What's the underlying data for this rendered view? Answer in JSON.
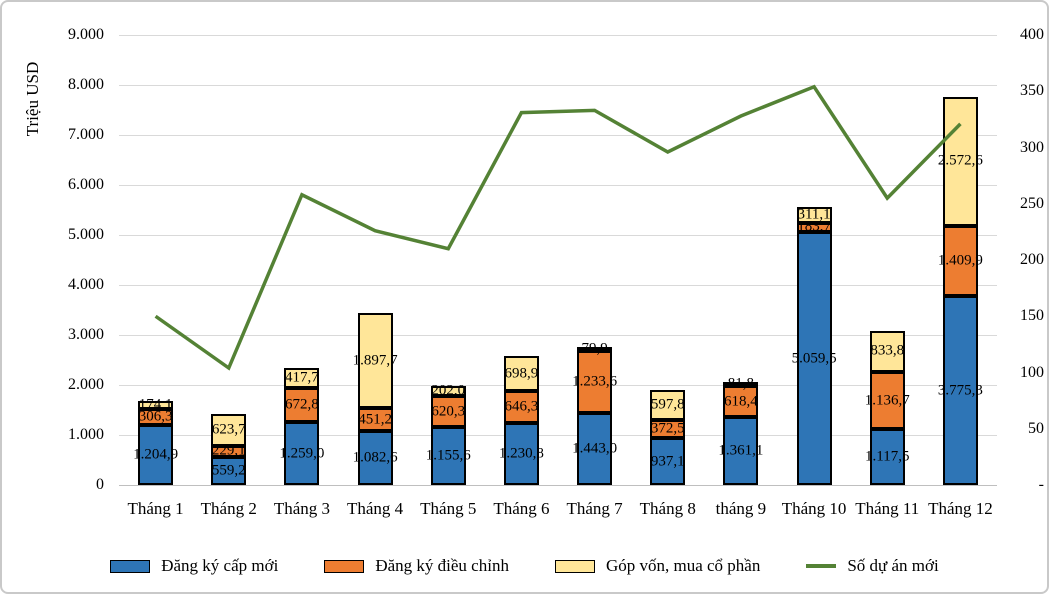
{
  "legend": [
    {
      "label": "Đăng ký cấp mới",
      "color": "#2E75B6",
      "swatch": "bar"
    },
    {
      "label": "Đăng ký điều chỉnh",
      "color": "#ED7D31",
      "swatch": "bar"
    },
    {
      "label": "Góp vốn, mua cổ phần",
      "color": "#FFE699",
      "swatch": "bar"
    },
    {
      "label": "Số dự án mới",
      "color": "#548235",
      "swatch": "line"
    }
  ],
  "chart_data": {
    "type": "bar",
    "subtype": "stacked-column-with-line",
    "categories": [
      "Tháng 1",
      "Tháng 2",
      "Tháng 3",
      "Tháng 4",
      "Tháng 5",
      "Tháng 6",
      "Tháng 7",
      "Tháng 8",
      "tháng 9",
      "Tháng 10",
      "Tháng 11",
      "Tháng 12"
    ],
    "series": [
      {
        "name": "Đăng ký cấp mới",
        "type": "bar",
        "axis": "left",
        "color": "#2E75B6",
        "values": [
          1204.9,
          559.2,
          1259.0,
          1082.6,
          1155.6,
          1230.8,
          1443.0,
          937.1,
          1361.1,
          5059.5,
          1117.5,
          3775.3
        ],
        "labels": [
          "1.204,9",
          "559,2",
          "1.259,0",
          "1.082,6",
          "1.155,6",
          "1.230,8",
          "1.443,0",
          "937,1",
          "1.361,1",
          "5.059,5",
          "1.117,5",
          "3.775,3"
        ]
      },
      {
        "name": "Đăng ký điều chỉnh",
        "type": "bar",
        "axis": "left",
        "color": "#ED7D31",
        "values": [
          306.3,
          229.1,
          672.8,
          451.2,
          620.3,
          646.3,
          1233.6,
          372.5,
          618.4,
          183.7,
          1136.7,
          1409.9
        ],
        "labels": [
          "306,3",
          "229,1",
          "672,8",
          "451,2",
          "620,3",
          "646,3",
          "1.233,6",
          "372,5",
          "618,4",
          "183,7",
          "1.136,7",
          "1.409,9"
        ]
      },
      {
        "name": "Góp vốn, mua cổ phần",
        "type": "bar",
        "axis": "left",
        "color": "#FFE699",
        "values": [
          174.1,
          623.7,
          417.7,
          1897.7,
          202.0,
          698.9,
          79.9,
          597.8,
          81.8,
          311.1,
          833.8,
          2572.6
        ],
        "labels": [
          "174,1",
          "623,7",
          "417,7",
          "1.897,7",
          "202,0",
          "698,9",
          "79,9",
          "597,8",
          "81,8",
          "311,1",
          "833,8",
          "2.572,6"
        ]
      },
      {
        "name": "Số dự án mới",
        "type": "line",
        "axis": "right",
        "color": "#548235",
        "values": [
          150,
          104,
          258,
          226,
          210,
          331,
          333,
          296,
          328,
          354,
          255,
          321
        ]
      }
    ],
    "left_axis": {
      "title": "Triệu USD",
      "min": 0,
      "max": 9000,
      "tick_step": 1000,
      "ticks": [
        "0",
        "1.000",
        "2.000",
        "3.000",
        "4.000",
        "5.000",
        "6.000",
        "7.000",
        "8.000",
        "9.000"
      ]
    },
    "right_axis": {
      "min": 0,
      "max": 400,
      "tick_step": 50,
      "ticks": [
        "-",
        "50",
        "100",
        "150",
        "200",
        "250",
        "300",
        "350",
        "400"
      ]
    },
    "grid": "horizontal",
    "legend_position": "bottom"
  }
}
